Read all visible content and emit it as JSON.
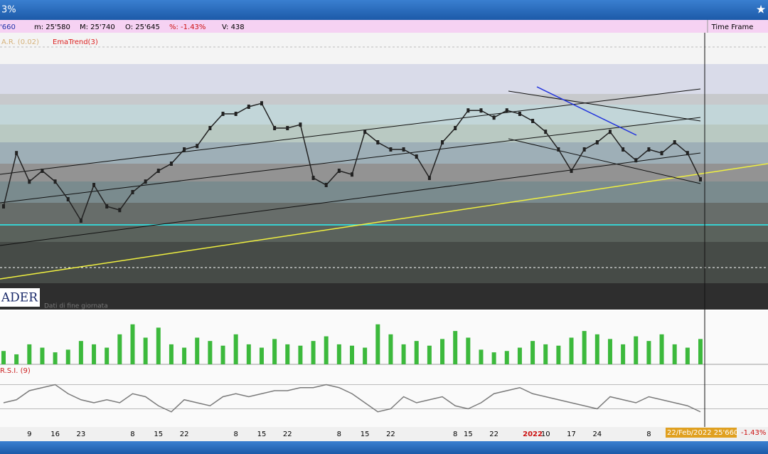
{
  "window": {
    "title": "3%",
    "star": "★"
  },
  "info_bar": {
    "last": "'660",
    "min": "m: 25'580",
    "max": "M: 25'740",
    "open": "O: 25'645",
    "change": "%: -1.43%",
    "volume": "V: 438",
    "time_frame": "Time Frame"
  },
  "chart_data": {
    "type": "line",
    "indicators": [
      "A.R. (0.02)",
      "EmaTrend(3)"
    ],
    "logo": "ADER",
    "note": "Dati di fine giornata",
    "categories": [
      null,
      null,
      "9",
      null,
      "16",
      null,
      "23",
      null,
      null,
      null,
      "8",
      null,
      "15",
      null,
      "22",
      null,
      null,
      null,
      "8",
      null,
      "15",
      null,
      "22",
      null,
      null,
      null,
      "8",
      null,
      "15",
      null,
      "22",
      null,
      null,
      null,
      null,
      "8",
      "15",
      null,
      "22",
      null,
      null,
      "2022",
      "10",
      null,
      "17",
      null,
      "24",
      null,
      null,
      null,
      "8",
      null,
      null,
      null,
      null
    ],
    "series": [
      {
        "name": "Close",
        "color": "#222222",
        "values": [
          25565,
          25752,
          25652,
          25690,
          25652,
          25590,
          25515,
          25640,
          25565,
          25552,
          25615,
          25652,
          25690,
          25715,
          25765,
          25777,
          25840,
          25890,
          25890,
          25915,
          25927,
          25840,
          25840,
          25852,
          25665,
          25640,
          25690,
          25677,
          25827,
          25790,
          25765,
          25765,
          25740,
          25665,
          25790,
          25840,
          25902,
          25902,
          25877,
          25902,
          25890,
          25865,
          25827,
          25765,
          25690,
          25765,
          25790,
          25827,
          25765,
          25727,
          25765,
          25752,
          25790,
          25752,
          25660
        ]
      }
    ],
    "ylim": [
      25215,
      26140
    ],
    "volume": {
      "color": "#3cb93c",
      "values": [
        20,
        15,
        30,
        25,
        18,
        22,
        35,
        30,
        25,
        45,
        60,
        40,
        55,
        30,
        25,
        40,
        35,
        28,
        45,
        30,
        25,
        38,
        30,
        28,
        35,
        42,
        30,
        28,
        25,
        60,
        45,
        30,
        35,
        28,
        38,
        50,
        40,
        22,
        18,
        20,
        25,
        35,
        30,
        28,
        40,
        50,
        45,
        38,
        30,
        42,
        35,
        45,
        30,
        25,
        38
      ],
      "ylim": [
        0,
        80
      ]
    },
    "rsi": {
      "label": "R.S.I. (9)",
      "color": "#7a7a7a",
      "values": [
        40,
        45,
        60,
        65,
        70,
        55,
        45,
        40,
        45,
        40,
        55,
        50,
        35,
        25,
        45,
        40,
        35,
        50,
        55,
        50,
        55,
        60,
        60,
        65,
        65,
        70,
        65,
        55,
        40,
        25,
        30,
        50,
        40,
        45,
        50,
        35,
        30,
        40,
        55,
        60,
        65,
        55,
        50,
        45,
        40,
        35,
        30,
        50,
        45,
        40,
        50,
        45,
        40,
        35,
        25
      ],
      "ylim": [
        0,
        100
      ],
      "yticks": [
        30,
        70
      ]
    },
    "cursor_label": "22/Feb/2022 25'660",
    "cursor_change": "-1.43%"
  }
}
